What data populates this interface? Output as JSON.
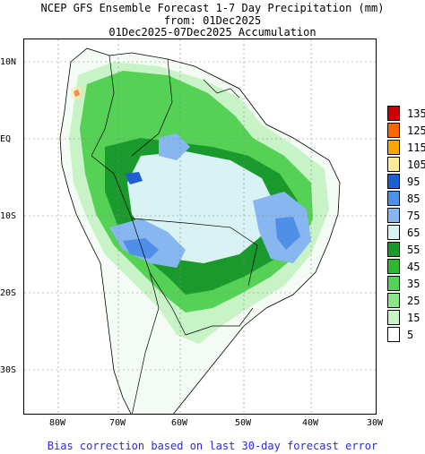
{
  "title": {
    "line1": "NCEP GFS Ensemble Forecast 1-7 Day Precipitation (mm)",
    "line2": "from: 01Dec2025",
    "line3": "01Dec2025-07Dec2025 Accumulation"
  },
  "footer": "Bias correction based on last 30-day forecast error",
  "axes": {
    "lat_labels": [
      "10N",
      "EQ",
      "10S",
      "20S",
      "30S"
    ],
    "lon_labels": [
      "80W",
      "70W",
      "60W",
      "50W",
      "40W",
      "30W"
    ],
    "gridlines": true
  },
  "legend": {
    "values": [
      "135",
      "125",
      "115",
      "105",
      "95",
      "85",
      "75",
      "65",
      "55",
      "45",
      "35",
      "25",
      "15",
      "5"
    ],
    "colors": [
      "#cc0000",
      "#ff6600",
      "#ffa500",
      "#ffeb99",
      "#1f5fd6",
      "#4f8fe8",
      "#86b7f0",
      "#d9f3f5",
      "#1a9a2c",
      "#2fb82f",
      "#55d155",
      "#8be58b",
      "#c7f3c7",
      "#ffffff"
    ]
  }
}
